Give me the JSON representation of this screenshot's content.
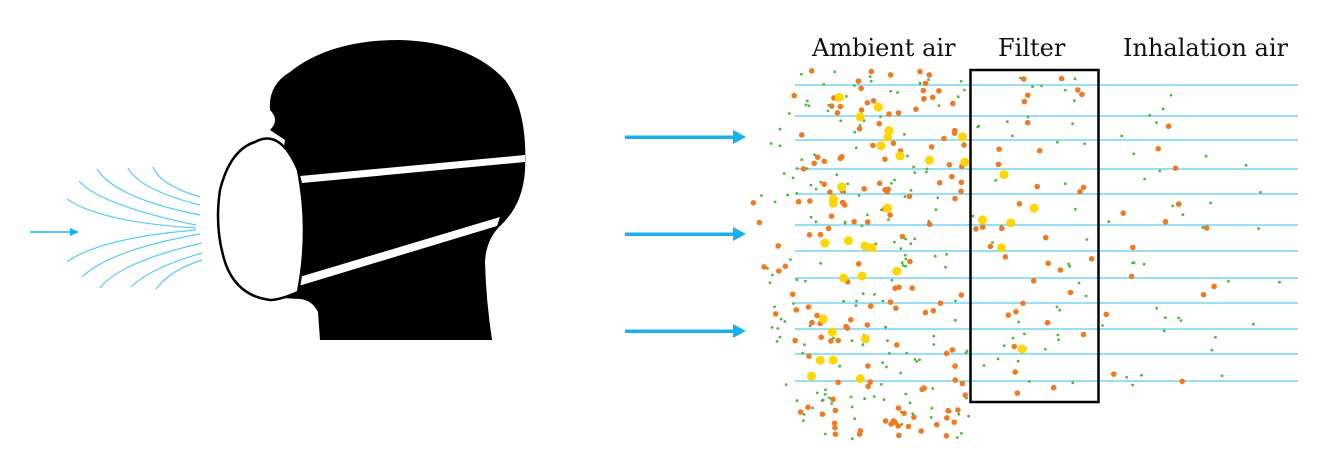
{
  "labels": {
    "ambient": "Ambient air",
    "filter": "Filter",
    "inhalation": "Inhalation air"
  },
  "colors": {
    "airflow": "#1ab0ee",
    "flow_lines": "#5ccbf2",
    "large_particle": "#ffd700",
    "medium_particle": "#f07a22",
    "small_particle": "#4cb83c",
    "silhouette": "#000000"
  },
  "icons": [
    "head-with-mask-silhouette",
    "airflow-arrow"
  ]
}
